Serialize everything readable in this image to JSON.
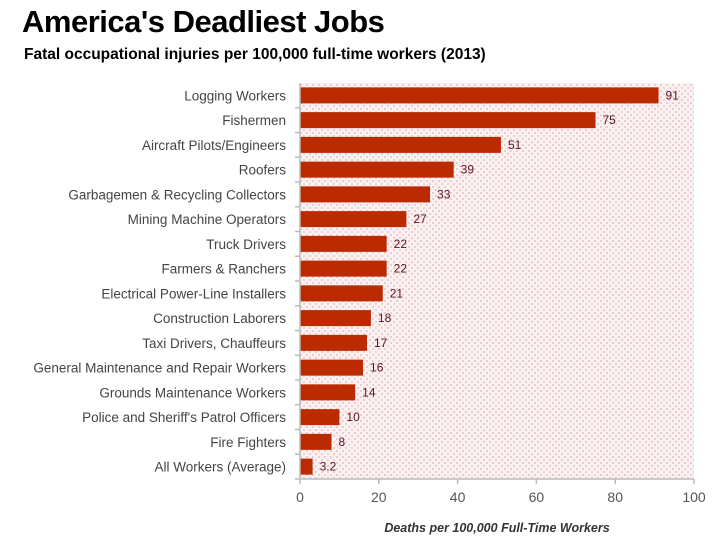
{
  "chart_data": {
    "type": "bar",
    "orientation": "horizontal",
    "title": "America's Deadliest Jobs",
    "subtitle": "Fatal occupational injuries per 100,000 full-time workers (2013)",
    "xlabel": "Deaths per 100,000 Full-Time Workers",
    "ylabel": "",
    "xlim": [
      0,
      100
    ],
    "xticks": [
      0,
      20,
      40,
      60,
      80,
      100
    ],
    "grid": false,
    "categories": [
      "Logging Workers",
      "Fishermen",
      "Aircraft Pilots/Engineers",
      "Roofers",
      "Garbagemen & Recycling Collectors",
      "Mining Machine Operators",
      "Truck Drivers",
      "Farmers & Ranchers",
      "Electrical Power-Line Installers",
      "Construction Laborers",
      "Taxi Drivers, Chauffeurs",
      "General Maintenance and Repair Workers",
      "Grounds Maintenance Workers",
      "Police and Sheriff's Patrol Officers",
      "Fire Fighters",
      "All Workers (Average)"
    ],
    "values": [
      91,
      75,
      51,
      39,
      33,
      27,
      22,
      22,
      21,
      18,
      17,
      16,
      14,
      10,
      8,
      3.2
    ],
    "data_labels": [
      "91",
      "75",
      "51",
      "39",
      "33",
      "27",
      "22",
      "22",
      "21",
      "18",
      "17",
      "16",
      "14",
      "10",
      "8",
      "3.2"
    ],
    "colors": {
      "bar": "#bb2a00",
      "background": "#f6e6e6",
      "axis": "#bbbbbb"
    }
  }
}
